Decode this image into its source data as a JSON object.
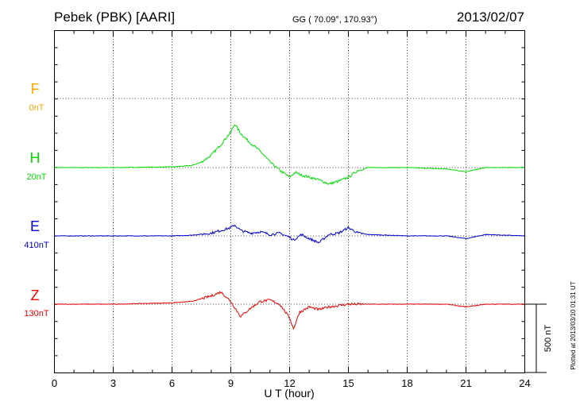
{
  "header": {
    "title": "Pebek (PBK)  [AARI]",
    "coords": "GG ( 70.09°, 170.93°)",
    "date": "2013/02/07"
  },
  "footer": {
    "plotted": "Plotted at 2013/03/10 01:31  UT"
  },
  "chart_data": {
    "type": "line",
    "xlabel": "U T (hour)",
    "xlim": [
      0,
      24
    ],
    "x_ticks": [
      "0",
      "3",
      "6",
      "9",
      "12",
      "15",
      "18",
      "21",
      "24"
    ],
    "scale_bar": {
      "label": "500 nT",
      "value": 500
    },
    "series": [
      {
        "name": "F",
        "offset_label": "0nT",
        "color": "#ffa500",
        "x": [],
        "values": []
      },
      {
        "name": "H",
        "offset_label": "20nT",
        "color": "#00dd00",
        "x": [
          0,
          3,
          6,
          7,
          7.5,
          8,
          8.5,
          9,
          9.2,
          9.5,
          10,
          10.5,
          11,
          11.5,
          12,
          12.3,
          12.6,
          13,
          13.5,
          14,
          14.5,
          15,
          15.5,
          16,
          18,
          20,
          21,
          22,
          24
        ],
        "values": [
          0,
          0,
          5,
          15,
          40,
          90,
          170,
          260,
          320,
          250,
          180,
          120,
          40,
          -20,
          -70,
          -35,
          -55,
          -70,
          -90,
          -120,
          -100,
          -70,
          -20,
          0,
          0,
          -10,
          -30,
          0,
          0
        ]
      },
      {
        "name": "E",
        "offset_label": "410nT",
        "color": "#0000cc",
        "x": [
          0,
          3,
          6,
          7,
          8,
          8.5,
          9,
          9.2,
          9.5,
          10,
          10.5,
          11,
          11.5,
          12,
          12.2,
          12.6,
          13,
          13.5,
          14,
          14.5,
          15,
          15.5,
          16,
          18,
          20,
          21,
          22,
          24
        ],
        "values": [
          0,
          0,
          0,
          5,
          20,
          40,
          60,
          80,
          40,
          20,
          30,
          10,
          20,
          -10,
          -30,
          10,
          -20,
          -50,
          10,
          20,
          60,
          20,
          10,
          0,
          0,
          -20,
          10,
          0
        ]
      },
      {
        "name": "Z",
        "offset_label": "130nT",
        "color": "#ee0000",
        "x": [
          0,
          3,
          6,
          7,
          8,
          8.5,
          9,
          9.5,
          10,
          10.5,
          11,
          11.5,
          12,
          12.2,
          12.5,
          13,
          13.5,
          14,
          15,
          15.5,
          16,
          18,
          20,
          21,
          22,
          24
        ],
        "values": [
          0,
          0,
          10,
          20,
          60,
          90,
          20,
          -90,
          -30,
          20,
          30,
          0,
          -100,
          -180,
          -60,
          -20,
          -40,
          -20,
          0,
          0,
          0,
          0,
          0,
          -20,
          0,
          0
        ]
      }
    ]
  }
}
